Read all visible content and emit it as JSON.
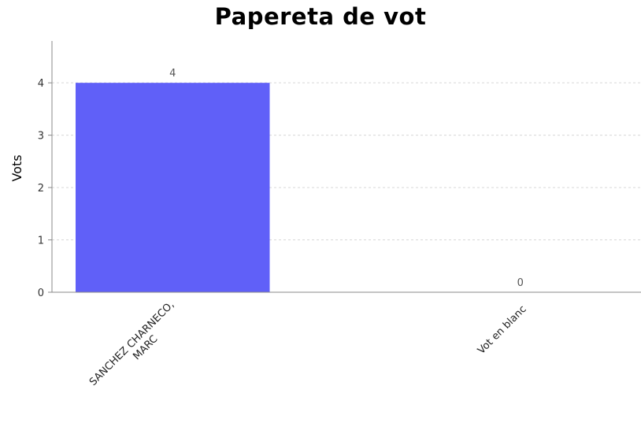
{
  "chart_data": {
    "type": "bar",
    "title": "Papereta de vot",
    "xlabel": "",
    "ylabel": "Vots",
    "categories": [
      [
        "SANCHEZ CHARNECO,",
        "MARC"
      ],
      [
        "Vot en blanc"
      ]
    ],
    "values": [
      4,
      0
    ],
    "yticks": [
      "0",
      "1",
      "2",
      "3",
      "4"
    ],
    "ylim": [
      0,
      4.8
    ],
    "grid": true,
    "bar_color": "#6060f8",
    "grid_color": "#d8d8d8",
    "axis_color": "#888888"
  }
}
